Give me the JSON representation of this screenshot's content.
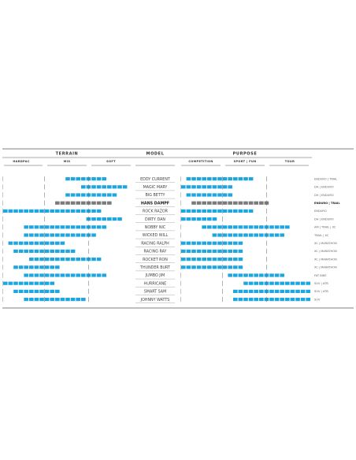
{
  "chart_data": {
    "type": "table",
    "headers": {
      "terrain": "TERRAIN",
      "model": "MODEL",
      "purpose": "PURPOSE"
    },
    "terrain_columns": [
      "HARDPAC",
      "MIX",
      "SOFT"
    ],
    "purpose_columns": [
      "COMPETITION",
      "SPORT | FUN",
      "TOUR"
    ],
    "colors": {
      "bar": "#1ea6e0",
      "highlight": "#7a7a7a",
      "line": "#555555"
    },
    "rows": [
      {
        "model": "EDDY CURRENT",
        "usage": "ENDURO | TRAIL",
        "terrain": [
          12,
          20
        ],
        "purpose": [
          1,
          14
        ],
        "highlight": false
      },
      {
        "model": "MAGIC MARY",
        "usage": "DH | ENDURO",
        "terrain": [
          15,
          24
        ],
        "purpose": [
          0,
          10
        ],
        "highlight": false
      },
      {
        "model": "BIG BETTY",
        "usage": "DH | ENDURO",
        "terrain": [
          12,
          22
        ],
        "purpose": [
          1,
          10
        ],
        "highlight": false
      },
      {
        "model": "HANS DAMPF",
        "usage": "ENDURO | TRAIL",
        "terrain": [
          10,
          21
        ],
        "purpose": [
          2,
          17
        ],
        "highlight": true
      },
      {
        "model": "ROCK RAZOR",
        "usage": "ENDURO",
        "terrain": [
          0,
          19
        ],
        "purpose": [
          0,
          14
        ],
        "highlight": false
      },
      {
        "model": "DIRTY DAN",
        "usage": "DH | ENDURO",
        "terrain": [
          16,
          23
        ],
        "purpose": [
          0,
          7
        ],
        "highlight": false
      },
      {
        "model": "NOBBY NIC",
        "usage": "AM | TRAIL | XC",
        "terrain": [
          4,
          20
        ],
        "purpose": [
          4,
          21
        ],
        "highlight": false
      },
      {
        "model": "WICKED WILL",
        "usage": "TRAIL | XC",
        "terrain": [
          4,
          18
        ],
        "purpose": [
          6,
          20
        ],
        "highlight": false
      },
      {
        "model": "RACING RALPH",
        "usage": "XC | MARATHON",
        "terrain": [
          1,
          12
        ],
        "purpose": [
          0,
          12
        ],
        "highlight": false
      },
      {
        "model": "RACING RAY",
        "usage": "XC | MARATHON",
        "terrain": [
          2,
          14
        ],
        "purpose": [
          0,
          12
        ],
        "highlight": false
      },
      {
        "model": "ROCKET RON",
        "usage": "XC | MARATHON",
        "terrain": [
          5,
          19
        ],
        "purpose": [
          0,
          12
        ],
        "highlight": false
      },
      {
        "model": "THUNDER BURT",
        "usage": "XC | MARATHON",
        "terrain": [
          2,
          11
        ],
        "purpose": [
          0,
          12
        ],
        "highlight": false
      },
      {
        "model": "JUMBO JIM",
        "usage": "FAT BIKE",
        "terrain": [
          4,
          20
        ],
        "purpose": [
          9,
          20
        ],
        "highlight": false
      },
      {
        "model": "HURRICANE",
        "usage": "SUV | ATB",
        "terrain": [
          0,
          10
        ],
        "purpose": [
          12,
          25
        ],
        "highlight": false
      },
      {
        "model": "SMART SAM",
        "usage": "SUV | ATB",
        "terrain": [
          2,
          11
        ],
        "purpose": [
          10,
          25
        ],
        "highlight": false
      },
      {
        "model": "JOHNNY WATTS",
        "usage": "SUV",
        "terrain": [
          4,
          16
        ],
        "purpose": [
          10,
          25
        ],
        "highlight": false
      }
    ]
  }
}
